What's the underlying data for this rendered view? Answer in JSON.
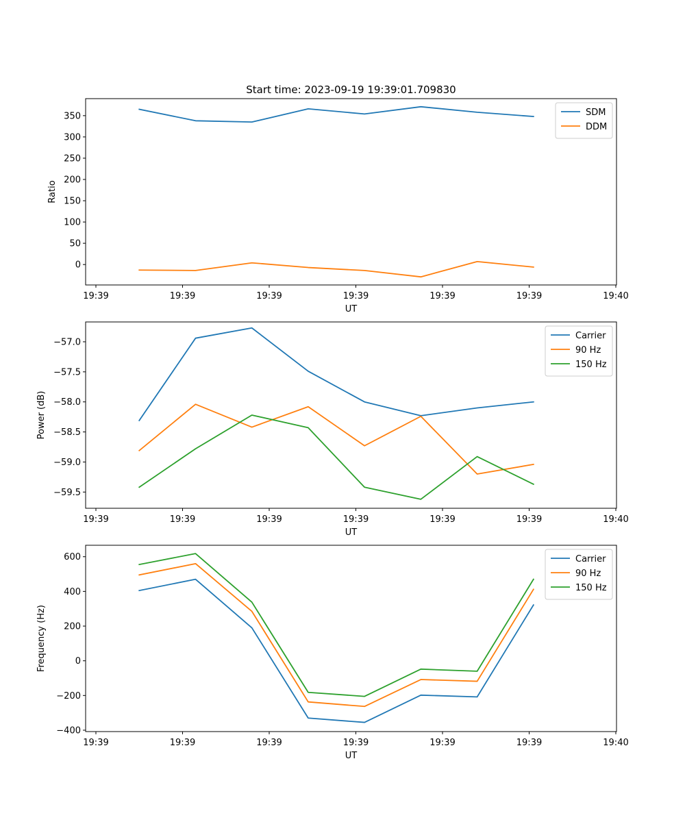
{
  "title": "Start time: 2023-09-19 19:39:01.709830",
  "colors": {
    "blue": "#1f77b4",
    "orange": "#ff7f0e",
    "green": "#2ca02c"
  },
  "chart_data": [
    {
      "type": "line",
      "title": "Start time: 2023-09-19 19:39:01.709830",
      "xlabel": "UT",
      "ylabel": "Ratio",
      "x_ticks": [
        {
          "label": "19:39",
          "t": 0
        },
        {
          "label": "19:39",
          "t": 1
        },
        {
          "label": "19:39",
          "t": 2
        },
        {
          "label": "19:39",
          "t": 3
        },
        {
          "label": "19:39",
          "t": 4
        },
        {
          "label": "19:39",
          "t": 5
        },
        {
          "label": "19:40",
          "t": 6
        }
      ],
      "xlim": [
        -0.12,
        6.0
      ],
      "ylim": [
        -48,
        390
      ],
      "y_ticks": [
        {
          "label": "0",
          "v": 0
        },
        {
          "label": "50",
          "v": 50
        },
        {
          "label": "100",
          "v": 100
        },
        {
          "label": "150",
          "v": 150
        },
        {
          "label": "200",
          "v": 200
        },
        {
          "label": "250",
          "v": 250
        },
        {
          "label": "300",
          "v": 300
        },
        {
          "label": "350",
          "v": 350
        }
      ],
      "x": [
        0.5,
        1.15,
        1.8,
        2.45,
        3.1,
        3.75,
        4.4,
        5.05
      ],
      "series": [
        {
          "name": "SDM",
          "color": "#1f77b4",
          "values": [
            365,
            338,
            335,
            366,
            354,
            371,
            358,
            348
          ]
        },
        {
          "name": "DDM",
          "color": "#ff7f0e",
          "values": [
            -13,
            -14,
            4,
            -7,
            -14,
            -29,
            7,
            -6
          ]
        }
      ],
      "legend": "top-right"
    },
    {
      "type": "line",
      "xlabel": "UT",
      "ylabel": "Power (dB)",
      "x_ticks": [
        {
          "label": "19:39",
          "t": 0
        },
        {
          "label": "19:39",
          "t": 1
        },
        {
          "label": "19:39",
          "t": 2
        },
        {
          "label": "19:39",
          "t": 3
        },
        {
          "label": "19:39",
          "t": 4
        },
        {
          "label": "19:39",
          "t": 5
        },
        {
          "label": "19:40",
          "t": 6
        }
      ],
      "xlim": [
        -0.12,
        6.0
      ],
      "ylim": [
        -59.77,
        -56.67
      ],
      "y_ticks": [
        {
          "label": "−59.5",
          "v": -59.5
        },
        {
          "label": "−59.0",
          "v": -59.0
        },
        {
          "label": "−58.5",
          "v": -58.5
        },
        {
          "label": "−58.0",
          "v": -58.0
        },
        {
          "label": "−57.5",
          "v": -57.5
        },
        {
          "label": "−57.0",
          "v": -57.0
        }
      ],
      "x": [
        0.5,
        1.15,
        1.8,
        2.45,
        3.1,
        3.75,
        4.4,
        5.05
      ],
      "series": [
        {
          "name": "Carrier",
          "color": "#1f77b4",
          "values": [
            -58.31,
            -56.94,
            -56.77,
            -57.49,
            -58.0,
            -58.23,
            -58.1,
            -58.0
          ]
        },
        {
          "name": "90 Hz",
          "color": "#ff7f0e",
          "values": [
            -58.81,
            -58.04,
            -58.42,
            -58.08,
            -58.73,
            -58.24,
            -59.2,
            -59.04
          ]
        },
        {
          "name": "150 Hz",
          "color": "#2ca02c",
          "values": [
            -59.42,
            -58.78,
            -58.22,
            -58.43,
            -59.42,
            -59.62,
            -58.91,
            -59.37
          ]
        }
      ],
      "legend": "top-right"
    },
    {
      "type": "line",
      "xlabel": "UT",
      "ylabel": "Frequency (Hz)",
      "x_ticks": [
        {
          "label": "19:39",
          "t": 0
        },
        {
          "label": "19:39",
          "t": 1
        },
        {
          "label": "19:39",
          "t": 2
        },
        {
          "label": "19:39",
          "t": 3
        },
        {
          "label": "19:39",
          "t": 4
        },
        {
          "label": "19:39",
          "t": 5
        },
        {
          "label": "19:40",
          "t": 6
        }
      ],
      "xlim": [
        -0.12,
        6.0
      ],
      "ylim": [
        -408,
        666
      ],
      "y_ticks": [
        {
          "label": "−400",
          "v": -400
        },
        {
          "label": "−200",
          "v": -200
        },
        {
          "label": "0",
          "v": 0
        },
        {
          "label": "200",
          "v": 200
        },
        {
          "label": "400",
          "v": 400
        },
        {
          "label": "600",
          "v": 600
        }
      ],
      "x": [
        0.5,
        1.15,
        1.8,
        2.45,
        3.1,
        3.75,
        4.4,
        5.05
      ],
      "series": [
        {
          "name": "Carrier",
          "color": "#1f77b4",
          "values": [
            405,
            470,
            190,
            -330,
            -355,
            -198,
            -208,
            322
          ]
        },
        {
          "name": "90 Hz",
          "color": "#ff7f0e",
          "values": [
            495,
            560,
            285,
            -237,
            -263,
            -108,
            -118,
            412
          ]
        },
        {
          "name": "150 Hz",
          "color": "#2ca02c",
          "values": [
            555,
            618,
            338,
            -182,
            -205,
            -48,
            -60,
            470
          ]
        }
      ],
      "legend": "top-right"
    }
  ]
}
